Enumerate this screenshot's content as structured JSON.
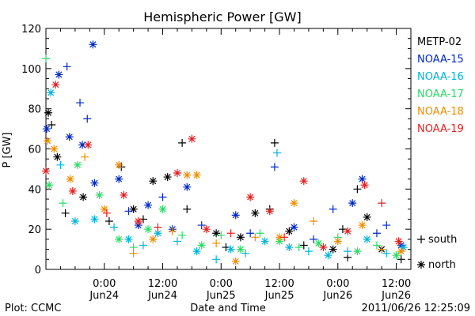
{
  "chart_data": {
    "type": "scatter",
    "title": "Hemispheric Power [GW]",
    "xlabel": "Date and Time",
    "ylabel": "P [GW]",
    "ylim": [
      0,
      120
    ],
    "yticks": [
      0,
      20,
      40,
      60,
      80,
      100,
      120
    ],
    "xlim": [
      "2011-06-23T12:00",
      "2011-06-26T15:00"
    ],
    "xticks": [
      {
        "time": "2011-06-24T00:00",
        "label": "0:00",
        "sublabel": "Jun24"
      },
      {
        "time": "2011-06-24T12:00",
        "label": "12:00",
        "sublabel": "Jun24"
      },
      {
        "time": "2011-06-25T00:00",
        "label": "0:00",
        "sublabel": "Jun25"
      },
      {
        "time": "2011-06-25T12:00",
        "label": "12:00",
        "sublabel": "Jun25"
      },
      {
        "time": "2011-06-26T00:00",
        "label": "0:00",
        "sublabel": "Jun26"
      },
      {
        "time": "2011-06-26T12:00",
        "label": "12:00",
        "sublabel": "Jun26"
      }
    ],
    "legend_position": "right",
    "marker_legend": [
      {
        "symbol": "+",
        "label": "south"
      },
      {
        "symbol": "*",
        "label": "north"
      }
    ],
    "series": [
      {
        "name": "METP-02",
        "color": "#000000",
        "points": [
          [
            "2011-06-23T12:30",
            78,
            "north"
          ],
          [
            "2011-06-23T13:10",
            72,
            "south"
          ],
          [
            "2011-06-23T14:20",
            56,
            "north"
          ],
          [
            "2011-06-23T16:00",
            28,
            "south"
          ],
          [
            "2011-06-23T19:40",
            36,
            "north"
          ],
          [
            "2011-06-24T01:00",
            24,
            "south"
          ],
          [
            "2011-06-24T03:30",
            51,
            "south"
          ],
          [
            "2011-06-24T06:00",
            30,
            "north"
          ],
          [
            "2011-06-24T08:00",
            25,
            "south"
          ],
          [
            "2011-06-24T10:00",
            44,
            "north"
          ],
          [
            "2011-06-24T13:00",
            46,
            "north"
          ],
          [
            "2011-06-24T16:00",
            63,
            "south"
          ],
          [
            "2011-06-24T17:00",
            30,
            "south"
          ],
          [
            "2011-06-24T23:00",
            18,
            "north"
          ],
          [
            "2011-06-25T01:00",
            11,
            "south"
          ],
          [
            "2011-06-25T04:00",
            16,
            "north"
          ],
          [
            "2011-06-25T07:00",
            28,
            "north"
          ],
          [
            "2011-06-25T10:00",
            30,
            "south"
          ],
          [
            "2011-06-25T11:00",
            63,
            "south"
          ],
          [
            "2011-06-25T14:00",
            19,
            "north"
          ],
          [
            "2011-06-25T17:00",
            12,
            "south"
          ],
          [
            "2011-06-25T23:00",
            10,
            "north"
          ],
          [
            "2011-06-26T01:00",
            20,
            "south"
          ],
          [
            "2011-06-26T02:00",
            6,
            "south"
          ],
          [
            "2011-06-26T04:00",
            40,
            "south"
          ],
          [
            "2011-06-26T06:00",
            26,
            "north"
          ],
          [
            "2011-06-26T09:00",
            10,
            "north"
          ],
          [
            "2011-06-26T13:00",
            5,
            "south"
          ]
        ]
      },
      {
        "name": "NOAA-15",
        "color": "#0028c8",
        "points": [
          [
            "2011-06-23T12:10",
            70,
            "north"
          ],
          [
            "2011-06-23T14:40",
            97,
            "north"
          ],
          [
            "2011-06-23T16:20",
            101,
            "south"
          ],
          [
            "2011-06-23T16:50",
            66,
            "north"
          ],
          [
            "2011-06-23T19:00",
            83,
            "south"
          ],
          [
            "2011-06-23T19:30",
            62,
            "north"
          ],
          [
            "2011-06-23T20:30",
            75,
            "south"
          ],
          [
            "2011-06-23T21:40",
            112,
            "north"
          ],
          [
            "2011-06-23T22:00",
            43,
            "north"
          ],
          [
            "2011-06-24T03:00",
            45,
            "north"
          ],
          [
            "2011-06-24T05:00",
            29,
            "south"
          ],
          [
            "2011-06-24T07:00",
            22,
            "north"
          ],
          [
            "2011-06-24T09:00",
            32,
            "north"
          ],
          [
            "2011-06-24T12:00",
            36,
            "south"
          ],
          [
            "2011-06-24T14:00",
            20,
            "north"
          ],
          [
            "2011-06-24T17:00",
            41,
            "north"
          ],
          [
            "2011-06-24T20:00",
            22,
            "south"
          ],
          [
            "2011-06-25T03:00",
            27,
            "north"
          ],
          [
            "2011-06-25T06:00",
            18,
            "south"
          ],
          [
            "2011-06-25T11:00",
            51,
            "south"
          ],
          [
            "2011-06-25T15:00",
            21,
            "north"
          ],
          [
            "2011-06-25T19:00",
            15,
            "south"
          ],
          [
            "2011-06-25T23:00",
            30,
            "south"
          ],
          [
            "2011-06-26T03:00",
            33,
            "north"
          ],
          [
            "2011-06-26T05:00",
            45,
            "north"
          ],
          [
            "2011-06-26T08:00",
            18,
            "south"
          ],
          [
            "2011-06-26T10:00",
            22,
            "south"
          ],
          [
            "2011-06-26T13:00",
            12,
            "north"
          ]
        ]
      },
      {
        "name": "NOAA-16",
        "color": "#00b4dc",
        "points": [
          [
            "2011-06-23T13:00",
            88,
            "north"
          ],
          [
            "2011-06-23T15:00",
            52,
            "south"
          ],
          [
            "2011-06-23T18:00",
            24,
            "north"
          ],
          [
            "2011-06-23T22:00",
            25,
            "north"
          ],
          [
            "2011-06-24T02:00",
            21,
            "south"
          ],
          [
            "2011-06-24T05:00",
            15,
            "north"
          ],
          [
            "2011-06-24T08:00",
            12,
            "south"
          ],
          [
            "2011-06-24T11:00",
            18,
            "north"
          ],
          [
            "2011-06-24T15:00",
            14,
            "south"
          ],
          [
            "2011-06-24T19:00",
            9,
            "north"
          ],
          [
            "2011-06-24T23:00",
            5,
            "south"
          ],
          [
            "2011-06-25T02:00",
            10,
            "north"
          ],
          [
            "2011-06-25T05:00",
            8,
            "south"
          ],
          [
            "2011-06-25T09:00",
            14,
            "north"
          ],
          [
            "2011-06-25T11:30",
            58,
            "south"
          ],
          [
            "2011-06-25T14:00",
            11,
            "north"
          ],
          [
            "2011-06-25T18:00",
            9,
            "south"
          ],
          [
            "2011-06-25T22:00",
            7,
            "north"
          ],
          [
            "2011-06-26T02:00",
            9,
            "south"
          ],
          [
            "2011-06-26T06:00",
            15,
            "north"
          ],
          [
            "2011-06-26T10:00",
            8,
            "south"
          ],
          [
            "2011-06-26T13:30",
            11,
            "north"
          ]
        ]
      },
      {
        "name": "NOAA-17",
        "color": "#28dc64",
        "points": [
          [
            "2011-06-23T12:00",
            105,
            "south"
          ],
          [
            "2011-06-23T12:40",
            42,
            "north"
          ],
          [
            "2011-06-23T15:30",
            33,
            "south"
          ],
          [
            "2011-06-23T18:30",
            52,
            "north"
          ],
          [
            "2011-06-23T23:00",
            37,
            "north"
          ],
          [
            "2011-06-24T03:00",
            15,
            "north"
          ],
          [
            "2011-06-24T06:00",
            11,
            "south"
          ],
          [
            "2011-06-24T09:00",
            20,
            "north"
          ],
          [
            "2011-06-24T12:00",
            30,
            "north"
          ],
          [
            "2011-06-24T16:00",
            17,
            "south"
          ],
          [
            "2011-06-24T20:00",
            12,
            "north"
          ],
          [
            "2011-06-25T00:00",
            17,
            "south"
          ],
          [
            "2011-06-25T04:00",
            10,
            "north"
          ],
          [
            "2011-06-25T08:00",
            18,
            "south"
          ],
          [
            "2011-06-25T12:00",
            14,
            "north"
          ],
          [
            "2011-06-25T16:00",
            11,
            "south"
          ],
          [
            "2011-06-25T20:00",
            13,
            "north"
          ],
          [
            "2011-06-26T00:00",
            16,
            "south"
          ],
          [
            "2011-06-26T04:00",
            9,
            "north"
          ],
          [
            "2011-06-26T08:00",
            12,
            "south"
          ],
          [
            "2011-06-26T12:00",
            7,
            "north"
          ]
        ]
      },
      {
        "name": "NOAA-18",
        "color": "#f08c00",
        "points": [
          [
            "2011-06-23T12:20",
            64,
            "north"
          ],
          [
            "2011-06-23T13:40",
            60,
            "north"
          ],
          [
            "2011-06-23T17:00",
            45,
            "north"
          ],
          [
            "2011-06-23T20:00",
            56,
            "south"
          ],
          [
            "2011-06-24T00:00",
            30,
            "north"
          ],
          [
            "2011-06-24T03:00",
            52,
            "north"
          ],
          [
            "2011-06-24T06:00",
            8,
            "south"
          ],
          [
            "2011-06-24T10:00",
            15,
            "north"
          ],
          [
            "2011-06-24T14:00",
            19,
            "south"
          ],
          [
            "2011-06-24T17:00",
            47,
            "north"
          ],
          [
            "2011-06-24T19:00",
            47,
            "north"
          ],
          [
            "2011-06-24T23:00",
            13,
            "south"
          ],
          [
            "2011-06-25T03:00",
            4,
            "north"
          ],
          [
            "2011-06-25T07:00",
            16,
            "south"
          ],
          [
            "2011-06-25T12:00",
            16,
            "north"
          ],
          [
            "2011-06-25T15:00",
            33,
            "north"
          ],
          [
            "2011-06-25T19:00",
            24,
            "south"
          ],
          [
            "2011-06-26T00:00",
            14,
            "north"
          ],
          [
            "2011-06-26T05:00",
            22,
            "north"
          ],
          [
            "2011-06-26T09:00",
            10,
            "south"
          ],
          [
            "2011-06-26T13:00",
            9,
            "north"
          ]
        ]
      },
      {
        "name": "NOAA-19",
        "color": "#e61e1e",
        "points": [
          [
            "2011-06-23T12:00",
            49,
            "north"
          ],
          [
            "2011-06-23T14:00",
            92,
            "north"
          ],
          [
            "2011-06-23T17:30",
            39,
            "north"
          ],
          [
            "2011-06-23T20:40",
            62,
            "north"
          ],
          [
            "2011-06-24T00:30",
            28,
            "south"
          ],
          [
            "2011-06-24T04:00",
            37,
            "north"
          ],
          [
            "2011-06-24T07:00",
            24,
            "north"
          ],
          [
            "2011-06-24T11:00",
            21,
            "south"
          ],
          [
            "2011-06-24T15:00",
            48,
            "north"
          ],
          [
            "2011-06-24T18:00",
            65,
            "north"
          ],
          [
            "2011-06-24T21:00",
            20,
            "north"
          ],
          [
            "2011-06-25T02:00",
            18,
            "south"
          ],
          [
            "2011-06-25T06:00",
            36,
            "north"
          ],
          [
            "2011-06-25T10:00",
            29,
            "north"
          ],
          [
            "2011-06-25T13:00",
            16,
            "south"
          ],
          [
            "2011-06-25T17:00",
            44,
            "north"
          ],
          [
            "2011-06-25T21:00",
            11,
            "north"
          ],
          [
            "2011-06-26T02:00",
            19,
            "north"
          ],
          [
            "2011-06-26T05:30",
            42,
            "north"
          ],
          [
            "2011-06-26T09:00",
            33,
            "south"
          ],
          [
            "2011-06-26T12:30",
            14,
            "north"
          ]
        ]
      }
    ]
  },
  "footer": {
    "plot_credit": "Plot: CCMC",
    "timestamp": "2011/06/26 12:25:09"
  }
}
